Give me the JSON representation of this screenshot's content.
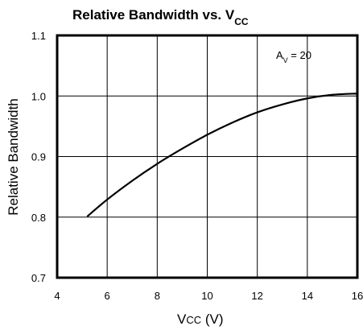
{
  "chart_data": {
    "type": "line",
    "title": {
      "main": "Relative Bandwidth vs. V",
      "sub": "CC"
    },
    "xlabel": {
      "main": "V",
      "sub": "CC",
      "rest": " (V)"
    },
    "ylabel": "Relative Bandwidth",
    "xlim": [
      4,
      16
    ],
    "ylim": [
      0.7,
      1.1
    ],
    "x_ticks": [
      "4",
      "6",
      "8",
      "10",
      "12",
      "14",
      "16"
    ],
    "y_ticks": [
      "0.7",
      "0.8",
      "0.9",
      "1.0",
      "1.1"
    ],
    "grid": true,
    "annotation": {
      "main": "A",
      "sub": "V",
      "rest": " = 20"
    },
    "series": [
      {
        "x": [
          5.2,
          6,
          7,
          8,
          9,
          10,
          11,
          12,
          13,
          14,
          15,
          16
        ],
        "values": [
          0.801,
          0.829,
          0.86,
          0.888,
          0.913,
          0.936,
          0.956,
          0.973,
          0.986,
          0.996,
          1.002,
          1.004
        ]
      }
    ]
  }
}
